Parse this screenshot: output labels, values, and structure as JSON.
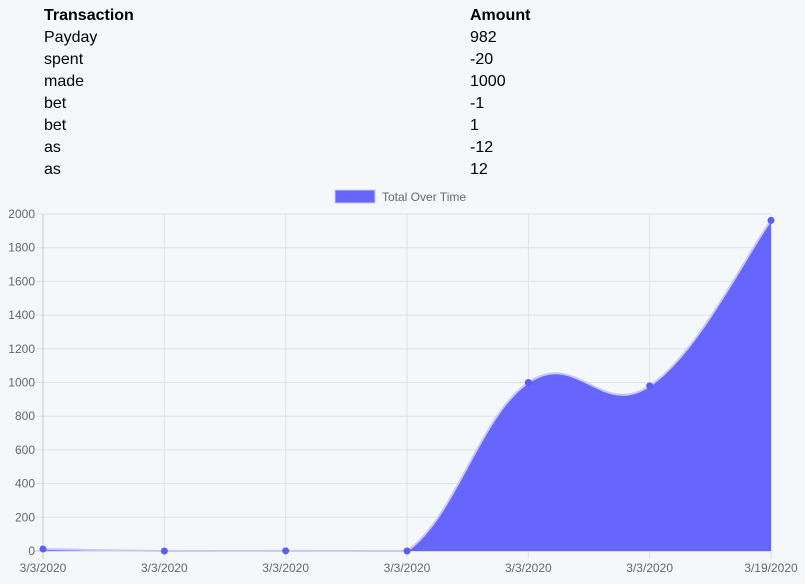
{
  "table": {
    "headers": [
      "Transaction",
      "Amount"
    ],
    "rows": [
      [
        "Payday",
        "982"
      ],
      [
        "spent",
        "-20"
      ],
      [
        "made",
        "1000"
      ],
      [
        "bet",
        "-1"
      ],
      [
        "bet",
        "1"
      ],
      [
        "as",
        "-12"
      ],
      [
        "as",
        "12"
      ]
    ]
  },
  "chart_data": {
    "type": "area",
    "x": [
      "3/3/2020",
      "3/3/2020",
      "3/3/2020",
      "3/3/2020",
      "3/3/2020",
      "3/3/2020",
      "3/19/2020"
    ],
    "series": [
      {
        "name": "Total Over Time",
        "values": [
          12,
          0,
          1,
          0,
          1000,
          980,
          1962
        ]
      }
    ],
    "ylim": [
      0,
      2000
    ],
    "yticks": [
      0,
      200,
      400,
      600,
      800,
      1000,
      1200,
      1400,
      1600,
      1800,
      2000
    ],
    "legend": "top",
    "grid": true,
    "fill_color": "#6666ff",
    "line_color": "#c9c9ef",
    "point_color": "#5d5df0"
  }
}
